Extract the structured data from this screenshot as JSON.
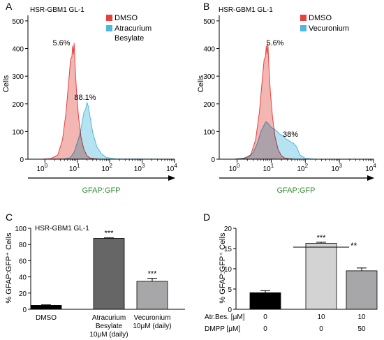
{
  "colors": {
    "dmso": "#e8403f",
    "dmso_fill": "#f2a9a6",
    "treat": "#4fb8dc",
    "treat_fill": "#a9def0",
    "overlap": "#c9a8c4",
    "axis": "#000000",
    "green": "#2e8b2e",
    "bar_black": "#000000",
    "bar_dark": "#666666",
    "bar_mid": "#a7a7a9",
    "bar_light": "#d3d3d3"
  },
  "chart_data": [
    {
      "panel": "A",
      "type": "area",
      "subtitle": "HSR-GBM1 GL-1",
      "ylabel": "Cells",
      "xlabel": "GFAP:GFP",
      "x_scale": "log",
      "xlim": [
        0.3,
        10000
      ],
      "ylim": [
        0,
        520
      ],
      "y_ticks": [
        "0",
        "100",
        "200",
        "300",
        "400",
        "500"
      ],
      "x_ticks": [
        {
          "base": "10",
          "exp": "0"
        },
        {
          "base": "10",
          "exp": "1"
        },
        {
          "base": "10",
          "exp": "2"
        },
        {
          "base": "10",
          "exp": "3"
        },
        {
          "base": "10",
          "exp": "4"
        }
      ],
      "legend": [
        "DMSO",
        "Atracurium",
        "Besylate"
      ],
      "annotations": [
        "5.6%",
        "88.1%"
      ],
      "series": [
        {
          "name": "DMSO",
          "x": [
            0.8,
            1.5,
            2.5,
            3.5,
            4.5,
            5.5,
            6.2,
            6.8,
            7.2,
            7.6,
            8.0,
            8.6,
            9.5,
            11,
            13,
            16,
            20,
            25,
            32,
            50,
            100,
            10000
          ],
          "y": [
            0,
            2,
            15,
            70,
            170,
            290,
            360,
            370,
            410,
            380,
            420,
            330,
            240,
            150,
            80,
            35,
            12,
            4,
            2,
            0,
            0,
            0
          ]
        },
        {
          "name": "Atracurium Besylate",
          "x": [
            0.8,
            4,
            6,
            8,
            10,
            12,
            14,
            16,
            18,
            20,
            22,
            25,
            30,
            40,
            55,
            80,
            150,
            10000
          ],
          "y": [
            0,
            1,
            5,
            25,
            60,
            90,
            130,
            170,
            180,
            205,
            190,
            150,
            95,
            45,
            20,
            6,
            1,
            0
          ]
        }
      ]
    },
    {
      "panel": "B",
      "type": "area",
      "subtitle": "HSR-GBM1 GL-1",
      "ylabel": "Cells",
      "xlabel": "GFAP:GFP",
      "x_scale": "log",
      "xlim": [
        0.3,
        10000
      ],
      "ylim": [
        0,
        520
      ],
      "y_ticks": [
        "0",
        "100",
        "200",
        "300",
        "400",
        "500"
      ],
      "x_ticks": [
        {
          "base": "10",
          "exp": "0"
        },
        {
          "base": "10",
          "exp": "1"
        },
        {
          "base": "10",
          "exp": "2"
        },
        {
          "base": "10",
          "exp": "3"
        },
        {
          "base": "10",
          "exp": "4"
        }
      ],
      "legend": [
        "DMSO",
        "Vecuronium"
      ],
      "annotations": [
        "5.6%",
        "38%"
      ],
      "series": [
        {
          "name": "DMSO",
          "x": [
            0.8,
            1.5,
            2.5,
            3.5,
            4.5,
            5.5,
            6.2,
            6.8,
            7.2,
            7.6,
            8.0,
            8.6,
            9.5,
            11,
            13,
            16,
            20,
            25,
            32,
            50,
            100,
            10000
          ],
          "y": [
            0,
            2,
            15,
            70,
            170,
            290,
            360,
            370,
            410,
            380,
            420,
            330,
            240,
            150,
            80,
            35,
            12,
            4,
            2,
            0,
            0,
            0
          ]
        },
        {
          "name": "Vecuronium",
          "x": [
            0.8,
            2,
            3,
            4,
            5,
            6,
            7,
            8,
            10,
            12,
            15,
            18,
            22,
            26,
            30,
            35,
            40,
            45,
            55,
            70,
            100,
            200,
            10000
          ],
          "y": [
            0,
            5,
            25,
            60,
            100,
            120,
            135,
            130,
            115,
            110,
            100,
            90,
            85,
            75,
            70,
            65,
            60,
            58,
            45,
            15,
            3,
            0,
            0
          ]
        }
      ]
    },
    {
      "panel": "C",
      "type": "bar",
      "subtitle": "HSR-GBM1 GL-1",
      "ylabel": "% GFAP:GFP⁺ Cells",
      "ylim": [
        0,
        100
      ],
      "y_ticks": [
        "0",
        "20",
        "40",
        "60",
        "80",
        "100"
      ],
      "categories": [
        [
          "DMSO"
        ],
        [
          "Atracurium",
          "Besylate",
          "10μM (daily)"
        ],
        [
          "Vecuronium",
          "10μM (daily)"
        ]
      ],
      "values": [
        4.8,
        87.5,
        34.5
      ],
      "errors": [
        0.7,
        0.7,
        3.8
      ],
      "significance": [
        "",
        "***",
        "***"
      ]
    },
    {
      "panel": "D",
      "type": "bar",
      "ylabel": "% GFAP:GFP⁺ Cells",
      "ylim": [
        0,
        20
      ],
      "y_ticks": [
        "0",
        "5",
        "10",
        "15",
        "20"
      ],
      "row_labels": [
        "Atr.Bes. [μM]",
        "DMPP [μM]"
      ],
      "conditions": [
        [
          "0",
          "0"
        ],
        [
          "10",
          "0"
        ],
        [
          "10",
          "50"
        ]
      ],
      "values": [
        4.1,
        16.3,
        9.5
      ],
      "errors": [
        0.5,
        0.25,
        0.7
      ],
      "significance": [
        "",
        "***",
        ""
      ],
      "bracket_label": "**"
    }
  ]
}
